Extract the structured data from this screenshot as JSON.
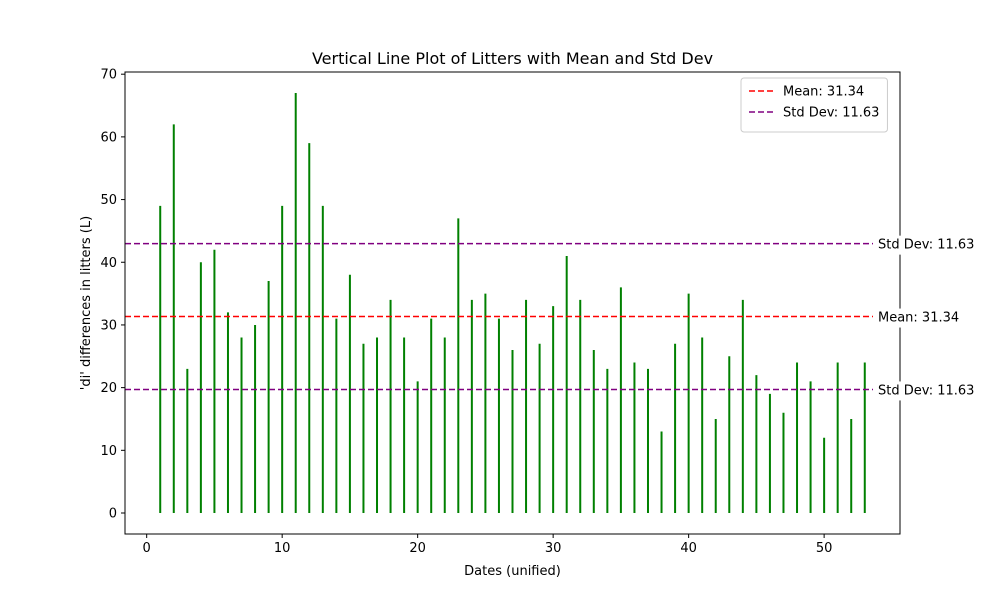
{
  "chart_data": {
    "type": "vertical_lines",
    "title": "Vertical Line Plot of Litters with Mean and Std Dev",
    "xlabel": "Dates (unified)",
    "ylabel": "'di' differences in litters (L)",
    "xlim": [
      -1.6,
      55.6
    ],
    "ylim": [
      -3.35,
      70.35
    ],
    "xticks": [
      0,
      10,
      20,
      30,
      40,
      50
    ],
    "yticks": [
      0,
      10,
      20,
      30,
      40,
      50,
      60,
      70
    ],
    "grid": false,
    "x": [
      1,
      2,
      3,
      4,
      5,
      6,
      7,
      8,
      9,
      10,
      11,
      12,
      13,
      14,
      15,
      16,
      17,
      18,
      19,
      20,
      21,
      22,
      23,
      24,
      25,
      26,
      27,
      28,
      29,
      30,
      31,
      32,
      33,
      34,
      35,
      36,
      37,
      38,
      39,
      40,
      41,
      42,
      43,
      44,
      45,
      46,
      47,
      48,
      49,
      50,
      51,
      52,
      53
    ],
    "values": [
      49,
      62,
      23,
      40,
      42,
      32,
      28,
      30,
      37,
      49,
      67,
      59,
      49,
      31,
      38,
      27,
      28,
      34,
      28,
      21,
      31,
      28,
      47,
      34,
      35,
      31,
      26,
      34,
      27,
      33,
      41,
      34,
      26,
      23,
      36,
      24,
      23,
      13,
      27,
      35,
      28,
      15,
      25,
      34,
      22,
      19,
      16,
      24,
      21,
      12,
      24,
      15,
      24
    ],
    "bar_color": "#008000",
    "reference_lines": [
      {
        "name": "mean",
        "y": 31.34,
        "color": "#ff0000",
        "legend": "Mean: 31.34",
        "label": "Mean: 31.34"
      },
      {
        "name": "std-upper",
        "y": 42.97,
        "color": "#800080",
        "legend": "Std Dev: 11.63",
        "label": "Std Dev: 11.63"
      },
      {
        "name": "std-lower",
        "y": 19.71,
        "color": "#800080",
        "legend": "",
        "label": "Std Dev: 11.63"
      }
    ],
    "legend_position": "upper right"
  }
}
